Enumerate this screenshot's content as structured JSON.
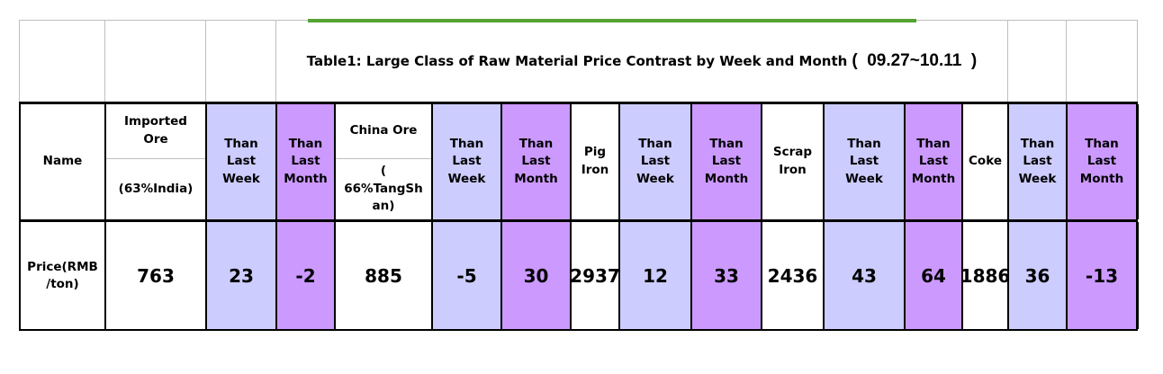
{
  "title": {
    "text": "Table1: Large Class of Raw Material Price Contrast by Week and Month",
    "period": "(  09.27~10.11  )"
  },
  "table": {
    "labels": {
      "name_header": "Name",
      "row_label": "Price(RMB\n/ton)",
      "than_last_week": "Than\nLast\nWeek",
      "than_last_month": "Than\nLast\nMonth"
    },
    "materials": [
      {
        "name": "Imported\nOre",
        "spec": "(63%India)",
        "price": "763",
        "than_last_week": "23",
        "than_last_month": "-2"
      },
      {
        "name": "China Ore",
        "spec": "(\n66%TangSh\nan)",
        "price": "885",
        "than_last_week": "-5",
        "than_last_month": "30"
      },
      {
        "name": "Pig\nIron",
        "price": "2937",
        "than_last_week": "12",
        "than_last_month": "33"
      },
      {
        "name": "Scrap\nIron",
        "price": "2436",
        "than_last_week": "43",
        "than_last_month": "64"
      },
      {
        "name": "Coke",
        "price": "1886",
        "than_last_week": "36",
        "than_last_month": "-13"
      }
    ]
  },
  "colors": {
    "week_column_bg": "#CCCCFF",
    "month_column_bg": "#CC99FF",
    "top_accent_line": "#55A331",
    "gridline": "#BFBFBF"
  }
}
